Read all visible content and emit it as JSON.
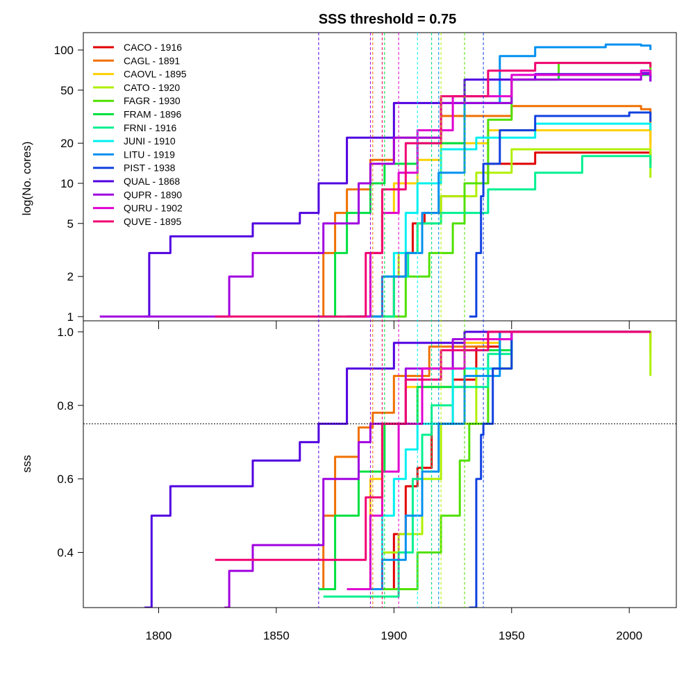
{
  "chart_data": {
    "type": "line",
    "title": "SSS threshold = 0.75",
    "xlim": [
      1768,
      2020
    ],
    "x_ticks": [
      1800,
      1850,
      1900,
      1950,
      2000
    ],
    "sss_threshold": 0.75,
    "legend_position": "top-left",
    "top_panel": {
      "ylabel": "log(No. cores)",
      "scale": "log",
      "ylim": [
        0.93,
        135
      ],
      "y_ticks": [
        1,
        2,
        5,
        10,
        20,
        50,
        100
      ]
    },
    "bottom_panel": {
      "ylabel": "sss",
      "ylim": [
        0.25,
        1.03
      ],
      "y_ticks": [
        0.4,
        0.6,
        0.8,
        1.0
      ],
      "y_tick_labels": [
        "0.4",
        "0.6",
        "0.8",
        "1.0"
      ]
    },
    "series": [
      {
        "name": "CACO",
        "label": "CACO - 1916",
        "year": 1916,
        "color": "#E00000",
        "cores": [
          [
            1890,
            1
          ],
          [
            1900,
            2
          ],
          [
            1905,
            3
          ],
          [
            1908,
            5
          ],
          [
            1913,
            6
          ],
          [
            1920,
            8
          ],
          [
            1930,
            10
          ],
          [
            1940,
            14
          ],
          [
            1960,
            17
          ],
          [
            2000,
            17
          ],
          [
            2008,
            17
          ],
          [
            2009,
            14
          ]
        ],
        "sss": [
          [
            1890,
            0.3
          ],
          [
            1900,
            0.45
          ],
          [
            1905,
            0.58
          ],
          [
            1910,
            0.63
          ],
          [
            1916,
            0.75
          ],
          [
            1925,
            0.87
          ],
          [
            1935,
            0.96
          ],
          [
            1945,
            1.0
          ],
          [
            2000,
            1.0
          ],
          [
            2009,
            0.99
          ]
        ]
      },
      {
        "name": "CAGL",
        "label": "CAGL - 1891",
        "year": 1891,
        "color": "#F07000",
        "cores": [
          [
            1868,
            1
          ],
          [
            1870,
            3
          ],
          [
            1875,
            6
          ],
          [
            1880,
            9
          ],
          [
            1890,
            15
          ],
          [
            1900,
            22
          ],
          [
            1920,
            32
          ],
          [
            1950,
            38
          ],
          [
            2005,
            36
          ],
          [
            2009,
            20
          ]
        ],
        "sss": [
          [
            1868,
            0.3
          ],
          [
            1870,
            0.5
          ],
          [
            1875,
            0.66
          ],
          [
            1885,
            0.74
          ],
          [
            1891,
            0.78
          ],
          [
            1900,
            0.88
          ],
          [
            1915,
            0.96
          ],
          [
            1940,
            1.0
          ],
          [
            2009,
            0.98
          ]
        ]
      },
      {
        "name": "CAOVL",
        "label": "CAOVL - 1895",
        "year": 1895,
        "color": "#FFD000",
        "cores": [
          [
            1886,
            1
          ],
          [
            1890,
            3
          ],
          [
            1895,
            6
          ],
          [
            1900,
            10
          ],
          [
            1910,
            15
          ],
          [
            1920,
            20
          ],
          [
            1940,
            25
          ],
          [
            2005,
            25
          ],
          [
            2009,
            15
          ]
        ],
        "sss": [
          [
            1886,
            0.3
          ],
          [
            1890,
            0.6
          ],
          [
            1895,
            0.75
          ],
          [
            1905,
            0.85
          ],
          [
            1925,
            0.97
          ],
          [
            1945,
            1.0
          ],
          [
            2005,
            1.0
          ],
          [
            2009,
            0.94
          ]
        ]
      },
      {
        "name": "CATO",
        "label": "CATO - 1920",
        "year": 1920,
        "color": "#B0F000",
        "cores": [
          [
            1886,
            1
          ],
          [
            1895,
            2
          ],
          [
            1902,
            3
          ],
          [
            1910,
            5
          ],
          [
            1920,
            8
          ],
          [
            1935,
            12
          ],
          [
            1950,
            18
          ],
          [
            2005,
            18
          ],
          [
            2009,
            11
          ]
        ],
        "sss": [
          [
            1886,
            0.3
          ],
          [
            1895,
            0.4
          ],
          [
            1902,
            0.45
          ],
          [
            1912,
            0.6
          ],
          [
            1920,
            0.75
          ],
          [
            1935,
            0.9
          ],
          [
            1950,
            1.0
          ],
          [
            2005,
            1.0
          ],
          [
            2009,
            0.88
          ]
        ]
      },
      {
        "name": "FAGR",
        "label": "FAGR - 1930",
        "year": 1930,
        "color": "#50E000",
        "cores": [
          [
            1895,
            1
          ],
          [
            1905,
            2
          ],
          [
            1915,
            3
          ],
          [
            1925,
            5
          ],
          [
            1930,
            10
          ],
          [
            1940,
            30
          ],
          [
            1950,
            60
          ],
          [
            1970,
            80
          ],
          [
            2009,
            68
          ]
        ],
        "sss": [
          [
            1895,
            0.3
          ],
          [
            1910,
            0.4
          ],
          [
            1920,
            0.5
          ],
          [
            1928,
            0.65
          ],
          [
            1932,
            0.75
          ],
          [
            1940,
            0.9
          ],
          [
            1950,
            1.0
          ],
          [
            2009,
            1.0
          ]
        ]
      },
      {
        "name": "FRAM",
        "label": "FRAM - 1896",
        "year": 1896,
        "color": "#00E040",
        "cores": [
          [
            1868,
            1
          ],
          [
            1875,
            3
          ],
          [
            1880,
            6
          ],
          [
            1890,
            10
          ],
          [
            1896,
            14
          ],
          [
            1910,
            20
          ],
          [
            1930,
            40
          ],
          [
            1950,
            60
          ],
          [
            1970,
            65
          ],
          [
            2009,
            62
          ]
        ],
        "sss": [
          [
            1868,
            0.3
          ],
          [
            1875,
            0.5
          ],
          [
            1885,
            0.62
          ],
          [
            1896,
            0.75
          ],
          [
            1910,
            0.85
          ],
          [
            1930,
            0.95
          ],
          [
            1950,
            1.0
          ],
          [
            2009,
            1.0
          ]
        ]
      },
      {
        "name": "FRNI",
        "label": "FRNI - 1916",
        "year": 1916,
        "color": "#00F090",
        "cores": [
          [
            1870,
            1
          ],
          [
            1900,
            2
          ],
          [
            1906,
            3
          ],
          [
            1910,
            5
          ],
          [
            1920,
            6
          ],
          [
            1940,
            9
          ],
          [
            1960,
            12
          ],
          [
            1980,
            16
          ],
          [
            2005,
            16
          ],
          [
            2009,
            13
          ]
        ],
        "sss": [
          [
            1870,
            0.28
          ],
          [
            1902,
            0.4
          ],
          [
            1908,
            0.6
          ],
          [
            1912,
            0.72
          ],
          [
            1916,
            0.8
          ],
          [
            1925,
            0.85
          ],
          [
            1940,
            0.94
          ],
          [
            1950,
            1.0
          ],
          [
            2009,
            1.0
          ]
        ]
      },
      {
        "name": "JUNI",
        "label": "JUNI - 1910",
        "year": 1910,
        "color": "#00F0F0",
        "cores": [
          [
            1880,
            1
          ],
          [
            1895,
            2
          ],
          [
            1900,
            3
          ],
          [
            1905,
            6
          ],
          [
            1910,
            10
          ],
          [
            1920,
            18
          ],
          [
            1935,
            22
          ],
          [
            1960,
            28
          ],
          [
            2005,
            28
          ],
          [
            2009,
            25
          ]
        ],
        "sss": [
          [
            1880,
            0.3
          ],
          [
            1895,
            0.5
          ],
          [
            1900,
            0.6
          ],
          [
            1905,
            0.68
          ],
          [
            1910,
            0.75
          ],
          [
            1925,
            0.9
          ],
          [
            1945,
            1.0
          ],
          [
            2009,
            1.0
          ]
        ]
      },
      {
        "name": "LITU",
        "label": "LITU - 1919",
        "year": 1919,
        "color": "#0090F0",
        "cores": [
          [
            1880,
            1
          ],
          [
            1895,
            2
          ],
          [
            1905,
            3
          ],
          [
            1912,
            6
          ],
          [
            1919,
            12
          ],
          [
            1930,
            40
          ],
          [
            1945,
            90
          ],
          [
            1960,
            105
          ],
          [
            1990,
            110
          ],
          [
            2005,
            108
          ],
          [
            2009,
            100
          ]
        ],
        "sss": [
          [
            1880,
            0.3
          ],
          [
            1895,
            0.38
          ],
          [
            1905,
            0.5
          ],
          [
            1912,
            0.62
          ],
          [
            1919,
            0.75
          ],
          [
            1930,
            0.88
          ],
          [
            1945,
            1.0
          ],
          [
            2009,
            1.0
          ]
        ]
      },
      {
        "name": "PIST",
        "label": "PIST - 1938",
        "year": 1938,
        "color": "#1040E0",
        "cores": [
          [
            1932,
            1
          ],
          [
            1935,
            3
          ],
          [
            1937,
            8
          ],
          [
            1938,
            14
          ],
          [
            1945,
            25
          ],
          [
            1960,
            32
          ],
          [
            2000,
            34
          ],
          [
            2009,
            29
          ]
        ],
        "sss": [
          [
            1932,
            0.25
          ],
          [
            1935,
            0.6
          ],
          [
            1937,
            0.72
          ],
          [
            1938,
            0.75
          ],
          [
            1942,
            0.9
          ],
          [
            1950,
            1.0
          ],
          [
            2009,
            1.0
          ]
        ]
      },
      {
        "name": "QUAL",
        "label": "QUAL - 1868",
        "year": 1868,
        "color": "#5000E0",
        "cores": [
          [
            1794,
            1
          ],
          [
            1796,
            3
          ],
          [
            1805,
            4
          ],
          [
            1840,
            5
          ],
          [
            1860,
            6
          ],
          [
            1868,
            10
          ],
          [
            1880,
            22
          ],
          [
            1900,
            40
          ],
          [
            1930,
            60
          ],
          [
            1960,
            66
          ],
          [
            2005,
            67
          ],
          [
            2009,
            58
          ]
        ],
        "sss": [
          [
            1794,
            0.25
          ],
          [
            1797,
            0.5
          ],
          [
            1805,
            0.58
          ],
          [
            1840,
            0.65
          ],
          [
            1860,
            0.7
          ],
          [
            1868,
            0.75
          ],
          [
            1880,
            0.9
          ],
          [
            1900,
            0.97
          ],
          [
            1930,
            1.0
          ],
          [
            2009,
            1.0
          ]
        ]
      },
      {
        "name": "QUPR",
        "label": "QUPR - 1890",
        "year": 1890,
        "color": "#A000E0",
        "cores": [
          [
            1775,
            1
          ],
          [
            1828,
            1
          ],
          [
            1830,
            2
          ],
          [
            1840,
            3
          ],
          [
            1870,
            5
          ],
          [
            1885,
            10
          ],
          [
            1890,
            14
          ],
          [
            1900,
            22
          ],
          [
            1920,
            40
          ],
          [
            1950,
            60
          ],
          [
            2005,
            66
          ],
          [
            2009,
            58
          ]
        ],
        "sss": [
          [
            1828,
            0.25
          ],
          [
            1830,
            0.35
          ],
          [
            1840,
            0.42
          ],
          [
            1870,
            0.6
          ],
          [
            1885,
            0.7
          ],
          [
            1890,
            0.75
          ],
          [
            1905,
            0.9
          ],
          [
            1925,
            0.98
          ],
          [
            1950,
            1.0
          ],
          [
            2009,
            1.0
          ]
        ]
      },
      {
        "name": "QURU",
        "label": "QURU - 1902",
        "year": 1902,
        "color": "#E000D0",
        "cores": [
          [
            1880,
            1
          ],
          [
            1890,
            3
          ],
          [
            1895,
            6
          ],
          [
            1902,
            12
          ],
          [
            1910,
            25
          ],
          [
            1925,
            45
          ],
          [
            1950,
            65
          ],
          [
            2005,
            70
          ],
          [
            2009,
            64
          ]
        ],
        "sss": [
          [
            1880,
            0.3
          ],
          [
            1890,
            0.5
          ],
          [
            1895,
            0.62
          ],
          [
            1902,
            0.75
          ],
          [
            1912,
            0.9
          ],
          [
            1930,
            0.98
          ],
          [
            1950,
            1.0
          ],
          [
            2009,
            1.0
          ]
        ]
      },
      {
        "name": "QUVE",
        "label": "QUVE - 1895",
        "year": 1895,
        "color": "#F00070",
        "cores": [
          [
            1824,
            1
          ],
          [
            1885,
            1
          ],
          [
            1888,
            3
          ],
          [
            1895,
            9
          ],
          [
            1905,
            20
          ],
          [
            1920,
            45
          ],
          [
            1940,
            70
          ],
          [
            1960,
            80
          ],
          [
            2005,
            80
          ],
          [
            2009,
            74
          ]
        ],
        "sss": [
          [
            1824,
            0.38
          ],
          [
            1885,
            0.38
          ],
          [
            1888,
            0.55
          ],
          [
            1895,
            0.75
          ],
          [
            1905,
            0.87
          ],
          [
            1920,
            0.95
          ],
          [
            1940,
            1.0
          ],
          [
            2009,
            1.0
          ]
        ]
      }
    ]
  }
}
